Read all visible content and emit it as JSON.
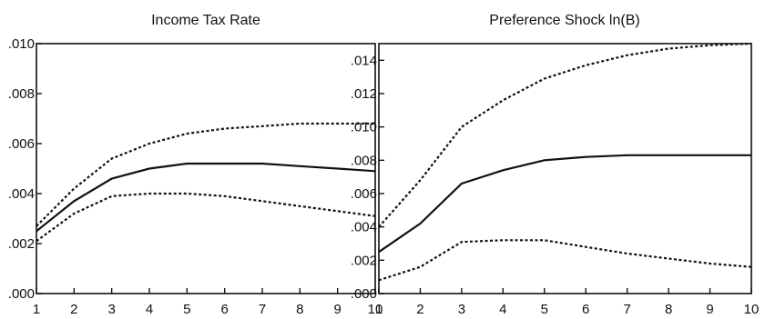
{
  "chart_data": [
    {
      "type": "line",
      "title": "Income Tax Rate",
      "x": [
        1,
        2,
        3,
        4,
        5,
        6,
        7,
        8,
        9,
        10
      ],
      "xlim": [
        1,
        10
      ],
      "ylim": [
        0,
        0.01
      ],
      "yticks": [
        ".000",
        ".002",
        ".004",
        ".006",
        ".008",
        ".010"
      ],
      "ytick_values": [
        0,
        0.002,
        0.004,
        0.006,
        0.008,
        0.01
      ],
      "xticks": [
        "1",
        "2",
        "3",
        "4",
        "5",
        "6",
        "7",
        "8",
        "9",
        "10"
      ],
      "series": [
        {
          "style": "dashed",
          "values": [
            0.0027,
            0.0042,
            0.0054,
            0.006,
            0.0064,
            0.0066,
            0.0067,
            0.0068,
            0.0068,
            0.0068
          ]
        },
        {
          "style": "solid",
          "values": [
            0.0025,
            0.0037,
            0.0046,
            0.005,
            0.0052,
            0.0052,
            0.0052,
            0.0051,
            0.005,
            0.0049
          ]
        },
        {
          "style": "dashed",
          "values": [
            0.0021,
            0.0032,
            0.0039,
            0.004,
            0.004,
            0.0039,
            0.0037,
            0.0035,
            0.0033,
            0.0031
          ]
        }
      ]
    },
    {
      "type": "line",
      "title": "Preference Shock ln(B)",
      "x": [
        1,
        2,
        3,
        4,
        5,
        6,
        7,
        8,
        9,
        10
      ],
      "xlim": [
        1,
        10
      ],
      "ylim": [
        0,
        0.015
      ],
      "yticks": [
        ".000",
        ".002",
        ".004",
        ".006",
        ".008",
        ".010",
        ".012",
        ".014"
      ],
      "ytick_values": [
        0,
        0.002,
        0.004,
        0.006,
        0.008,
        0.01,
        0.012,
        0.014
      ],
      "xticks": [
        "1",
        "2",
        "3",
        "4",
        "5",
        "6",
        "7",
        "8",
        "9",
        "10"
      ],
      "series": [
        {
          "style": "dashed",
          "values": [
            0.004,
            0.0068,
            0.01,
            0.0116,
            0.0129,
            0.0137,
            0.0143,
            0.0147,
            0.0149,
            0.015
          ]
        },
        {
          "style": "solid",
          "values": [
            0.0025,
            0.0042,
            0.0066,
            0.0074,
            0.008,
            0.0082,
            0.0083,
            0.0083,
            0.0083,
            0.0083
          ]
        },
        {
          "style": "dashed",
          "values": [
            0.0008,
            0.0016,
            0.0031,
            0.0032,
            0.0032,
            0.0028,
            0.0024,
            0.0021,
            0.0018,
            0.0016
          ]
        }
      ]
    }
  ]
}
